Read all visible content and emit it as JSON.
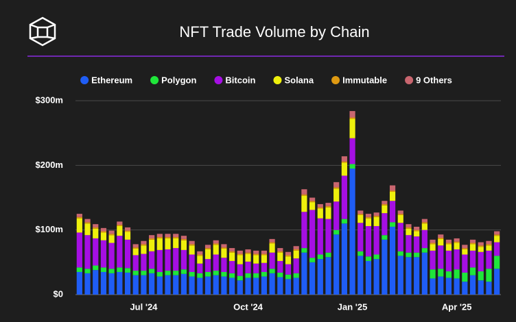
{
  "chart_data": {
    "type": "stacked_bar",
    "title": "NFT Trade Volume by Chain",
    "categories": [
      null,
      null,
      null,
      null,
      null,
      null,
      null,
      null,
      "Jul '24",
      null,
      null,
      null,
      null,
      null,
      null,
      null,
      null,
      null,
      null,
      null,
      null,
      "Oct '24",
      null,
      null,
      null,
      null,
      null,
      null,
      null,
      null,
      null,
      null,
      null,
      null,
      "Jan '25",
      null,
      null,
      null,
      null,
      null,
      null,
      null,
      null,
      null,
      null,
      null,
      null,
      "Apr '25",
      null,
      null,
      null,
      null,
      null
    ],
    "series": [
      {
        "name": "Ethereum",
        "color": "#1f5df5",
        "values": [
          35,
          33,
          38,
          35,
          33,
          35,
          34,
          30,
          30,
          33,
          28,
          30,
          30,
          32,
          28,
          26,
          28,
          30,
          28,
          26,
          22,
          26,
          26,
          28,
          33,
          27,
          24,
          26,
          65,
          50,
          55,
          58,
          93,
          110,
          195,
          60,
          52,
          55,
          85,
          105,
          60,
          58,
          58,
          65,
          25,
          28,
          26,
          25,
          20,
          30,
          22,
          20,
          40
        ]
      },
      {
        "name": "Polygon",
        "color": "#1fe63a",
        "values": [
          7,
          7,
          7,
          7,
          7,
          7,
          7,
          7,
          7,
          7,
          7,
          7,
          7,
          7,
          7,
          7,
          7,
          7,
          7,
          7,
          7,
          7,
          7,
          7,
          7,
          7,
          7,
          7,
          7,
          7,
          7,
          7,
          7,
          7,
          7,
          7,
          7,
          7,
          7,
          7,
          7,
          7,
          7,
          7,
          14,
          12,
          10,
          14,
          14,
          12,
          14,
          20,
          20
        ]
      },
      {
        "name": "Bitcoin",
        "color": "#a50fe3",
        "values": [
          54,
          52,
          42,
          42,
          40,
          49,
          44,
          24,
          26,
          27,
          34,
          33,
          35,
          30,
          27,
          15,
          20,
          25,
          22,
          19,
          18,
          18,
          15,
          14,
          25,
          18,
          16,
          23,
          56,
          74,
          56,
          52,
          44,
          67,
          40,
          44,
          47,
          44,
          34,
          33,
          44,
          27,
          25,
          28,
          29,
          36,
          32,
          31,
          28,
          26,
          30,
          28,
          21
        ]
      },
      {
        "name": "Solana",
        "color": "#eef00c",
        "values": [
          22,
          18,
          15,
          12,
          12,
          15,
          12,
          10,
          13,
          18,
          18,
          17,
          15,
          15,
          14,
          12,
          15,
          15,
          14,
          13,
          14,
          12,
          13,
          12,
          14,
          13,
          12,
          12,
          25,
          12,
          15,
          18,
          20,
          20,
          30,
          12,
          12,
          14,
          12,
          14,
          12,
          10,
          8,
          10,
          10,
          10,
          10,
          10,
          8,
          10,
          8,
          8,
          10
        ]
      },
      {
        "name": "Immutable",
        "color": "#df9a12",
        "values": [
          2,
          2,
          2,
          2,
          2,
          2,
          2,
          2,
          2,
          2,
          2,
          2,
          2,
          2,
          2,
          2,
          2,
          2,
          2,
          2,
          2,
          2,
          2,
          2,
          2,
          2,
          2,
          2,
          2,
          2,
          2,
          2,
          2,
          2,
          2,
          2,
          2,
          2,
          2,
          2,
          2,
          2,
          2,
          2,
          2,
          2,
          2,
          2,
          2,
          2,
          2,
          2,
          2
        ]
      },
      {
        "name": "9 Others",
        "color": "#c9666f",
        "values": [
          5,
          5,
          5,
          5,
          5,
          5,
          5,
          5,
          5,
          5,
          5,
          5,
          5,
          5,
          5,
          5,
          5,
          5,
          5,
          5,
          5,
          5,
          5,
          5,
          5,
          5,
          5,
          5,
          8,
          5,
          5,
          5,
          8,
          8,
          10,
          5,
          5,
          5,
          5,
          8,
          5,
          5,
          5,
          5,
          5,
          5,
          5,
          5,
          5,
          5,
          5,
          5,
          5
        ]
      }
    ],
    "ylim": [
      0,
      300
    ],
    "yticks": [
      {
        "value": 0,
        "label": "$0"
      },
      {
        "value": 100,
        "label": "$100m"
      },
      {
        "value": 200,
        "label": "$200m"
      },
      {
        "value": 300,
        "label": "$300m"
      }
    ],
    "grid": true
  }
}
